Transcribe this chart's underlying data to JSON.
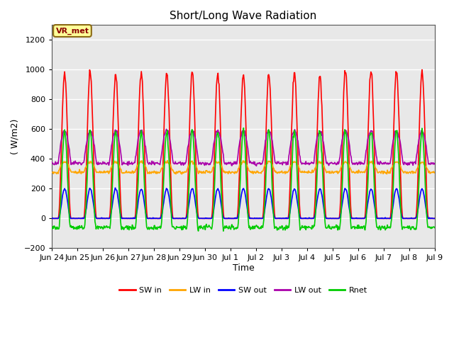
{
  "title": "Short/Long Wave Radiation",
  "ylabel": "( W/m2)",
  "xlabel": "Time",
  "ylim": [
    -200,
    1300
  ],
  "yticks": [
    -200,
    0,
    200,
    400,
    600,
    800,
    1000,
    1200
  ],
  "background_color": "#ffffff",
  "plot_bg_color": "#e8e8e8",
  "grid_color": "#ffffff",
  "annotation_text": "VR_met",
  "annotation_bg": "#ffff99",
  "annotation_border": "#8B6914",
  "series": {
    "SW_in": {
      "color": "#ff0000",
      "label": "SW in"
    },
    "LW_in": {
      "color": "#ffa500",
      "label": "LW in"
    },
    "SW_out": {
      "color": "#0000ff",
      "label": "SW out"
    },
    "LW_out": {
      "color": "#aa00aa",
      "label": "LW out"
    },
    "Rnet": {
      "color": "#00cc00",
      "label": "Rnet"
    }
  },
  "x_tick_labels": [
    "Jun 24",
    "Jun 25",
    "Jun 26",
    "Jun 27",
    "Jun 28",
    "Jun 29",
    "Jun 30",
    "Jul 1",
    "Jul 2",
    "Jul 3",
    "Jul 4",
    "Jul 5",
    "Jul 6",
    "Jul 7",
    "Jul 8",
    "Jul 9"
  ],
  "n_days": 15,
  "points_per_day": 48
}
